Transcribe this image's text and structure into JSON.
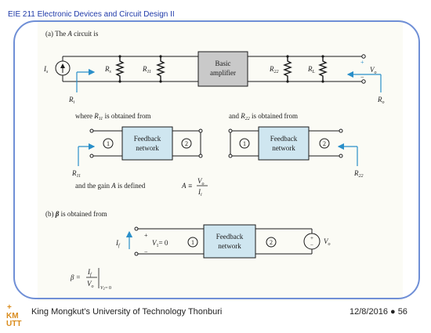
{
  "header": {
    "course": "EIE 211 Electronic Devices and Circuit Design II"
  },
  "part_a": {
    "title": "(a)   The",
    "title_A": "A",
    "title_rest": "circuit is",
    "source_label": "I",
    "source_sub": "s",
    "rs_label": "R",
    "rs_sub": "s",
    "r11_label": "R",
    "r11_sub": "11",
    "amp_line1": "Basic",
    "amp_line2": "amplifier",
    "r22_label": "R",
    "r22_sub": "22",
    "rl_label": "R",
    "rl_sub": "L",
    "vo_label": "V",
    "vo_sub": "o",
    "plus": "+",
    "minus": "−",
    "ri_label": "R",
    "ri_sub": "i",
    "ro_label": "R",
    "ro_sub": "o",
    "r11_text_a": "where",
    "r11_text_b": "is obtained from",
    "r22_text_a": "and",
    "r22_text_b": "is obtained from",
    "fb_line1": "Feedback",
    "fb_line2": "network",
    "port1": "1",
    "port2": "2",
    "gain_text": "and the gain",
    "gain_text2": "is defined",
    "gain_eq_lhs": "A ≡",
    "gain_num": "V",
    "gain_num_sub": "o",
    "gain_den": "I",
    "gain_den_sub": "i"
  },
  "part_b": {
    "title": "(b)",
    "beta": "β",
    "title_rest": "is obtained from",
    "if_label": "I",
    "if_sub": "f",
    "v1_text": "V",
    "v1_sub": "1",
    "v1_eq": "= 0",
    "vo_label": "V",
    "vo_sub": "o",
    "beta_eq": "β =",
    "beta_num": "I",
    "beta_num_sub": "f",
    "beta_den": "V",
    "beta_den_sub": "o",
    "beta_cond": "V",
    "beta_cond_sub": "1",
    "beta_cond_rest": "= 0"
  },
  "footer": {
    "university": "King Mongkut’s University of Technology Thonburi",
    "date_page": "12/8/2016 ● 56",
    "logo_text": "KM UTT"
  },
  "colors": {
    "wire": "#1a1a1a",
    "box_fill": "#cfe6f0",
    "amp_fill": "#c9c9c9",
    "frame": "#6f8fd6",
    "arrow": "#2a8fc9",
    "header": "#1f3aa8"
  }
}
